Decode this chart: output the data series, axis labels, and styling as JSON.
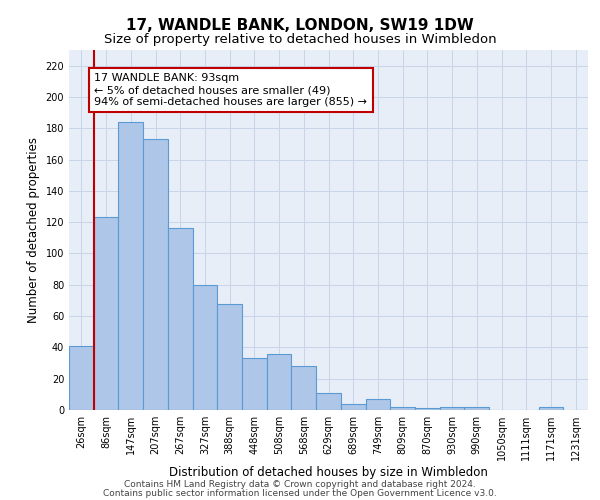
{
  "title": "17, WANDLE BANK, LONDON, SW19 1DW",
  "subtitle": "Size of property relative to detached houses in Wimbledon",
  "xlabel": "Distribution of detached houses by size in Wimbledon",
  "ylabel": "Number of detached properties",
  "categories": [
    "26sqm",
    "86sqm",
    "147sqm",
    "207sqm",
    "267sqm",
    "327sqm",
    "388sqm",
    "448sqm",
    "508sqm",
    "568sqm",
    "629sqm",
    "689sqm",
    "749sqm",
    "809sqm",
    "870sqm",
    "930sqm",
    "990sqm",
    "1050sqm",
    "1111sqm",
    "1171sqm",
    "1231sqm"
  ],
  "values": [
    41,
    123,
    184,
    173,
    116,
    80,
    68,
    33,
    36,
    28,
    11,
    4,
    7,
    2,
    1,
    2,
    2,
    0,
    0,
    2,
    0
  ],
  "bar_color": "#aec6e8",
  "bar_edge_color": "#5b9bd5",
  "bar_edge_width": 0.8,
  "vline_color": "#c00000",
  "annotation_text": "17 WANDLE BANK: 93sqm\n← 5% of detached houses are smaller (49)\n94% of semi-detached houses are larger (855) →",
  "annotation_box_color": "#ffffff",
  "annotation_box_edge_color": "#c00000",
  "annotation_fontsize": 8.0,
  "ylim": [
    0,
    230
  ],
  "yticks": [
    0,
    20,
    40,
    60,
    80,
    100,
    120,
    140,
    160,
    180,
    200,
    220
  ],
  "grid_color": "#c8d4e8",
  "background_color": "#e8eef8",
  "footer_line1": "Contains HM Land Registry data © Crown copyright and database right 2024.",
  "footer_line2": "Contains public sector information licensed under the Open Government Licence v3.0.",
  "title_fontsize": 11,
  "subtitle_fontsize": 9.5,
  "xlabel_fontsize": 8.5,
  "ylabel_fontsize": 8.5,
  "tick_fontsize": 7.0,
  "footer_fontsize": 6.5
}
